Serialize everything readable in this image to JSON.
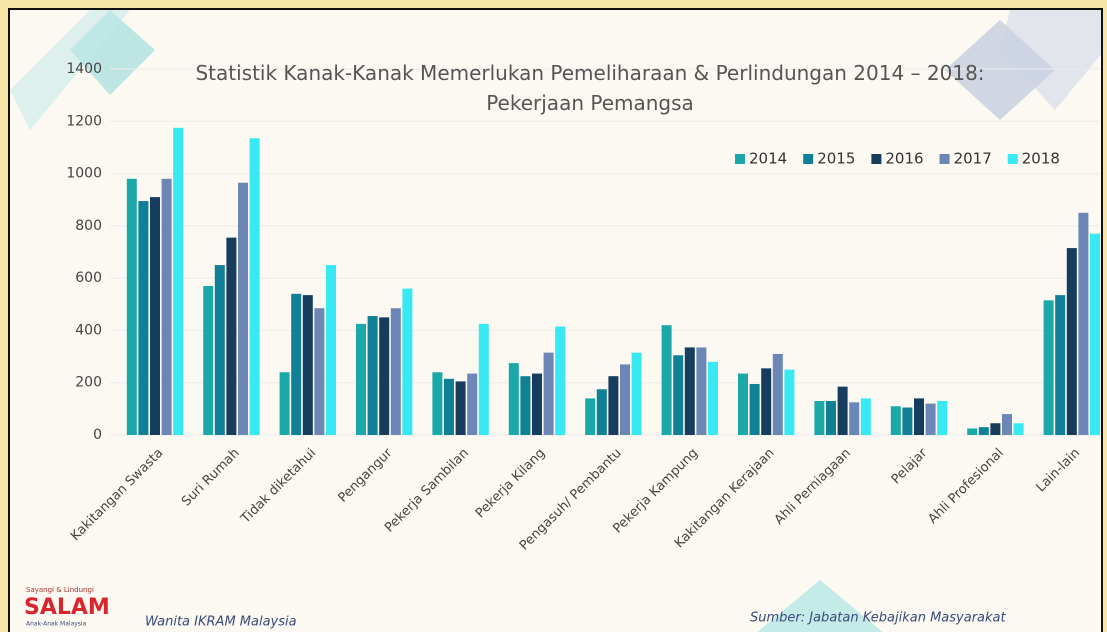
{
  "chart_data": {
    "type": "bar",
    "title": "Statistik Kanak-Kanak Memerlukan Pemeliharaan & Perlindungan 2014 – 2018: Pekerjaan Pemangsa",
    "categories": [
      "Kakitangan Swasta",
      "Suri Rumah",
      "Tidak diketahui",
      "Pengangur",
      "Pekerja Sambilan",
      "Pekerja Kilang",
      "Pengasuh/ Pembantu",
      "Pekerja Kampung",
      "Kakitangan Kerajaan",
      "Ahli Perniagaan",
      "Pelajar",
      "Ahli Profesional",
      "Lain-lain"
    ],
    "series": [
      {
        "name": "2014",
        "color": "#1ba8a8",
        "values": [
          980,
          570,
          240,
          425,
          240,
          275,
          140,
          420,
          235,
          130,
          110,
          25,
          515
        ]
      },
      {
        "name": "2015",
        "color": "#0f8096",
        "values": [
          895,
          650,
          540,
          455,
          215,
          225,
          175,
          305,
          195,
          130,
          105,
          30,
          535
        ]
      },
      {
        "name": "2016",
        "color": "#173d5e",
        "values": [
          910,
          755,
          535,
          450,
          205,
          235,
          225,
          335,
          255,
          185,
          140,
          45,
          715
        ]
      },
      {
        "name": "2017",
        "color": "#6c87b6",
        "values": [
          980,
          965,
          485,
          485,
          235,
          315,
          270,
          335,
          310,
          125,
          120,
          80,
          850
        ]
      },
      {
        "name": "2018",
        "color": "#38e8f2",
        "values": [
          1175,
          1135,
          650,
          560,
          425,
          415,
          315,
          280,
          250,
          140,
          130,
          45,
          770
        ]
      }
    ],
    "ylim": [
      0,
      1400
    ],
    "yticks": [
      0,
      200,
      400,
      600,
      800,
      1000,
      1200,
      1400
    ],
    "grid": true,
    "legend": "top-right",
    "footer_left": "Wanita IKRAM Malaysia",
    "source": "Sumber: Jabatan Kebajikan Masyarakat",
    "logo": {
      "top": "Sayangi & Lindungi",
      "name": "SALAM",
      "bottom": "Anak-Anak Malaysia"
    }
  }
}
